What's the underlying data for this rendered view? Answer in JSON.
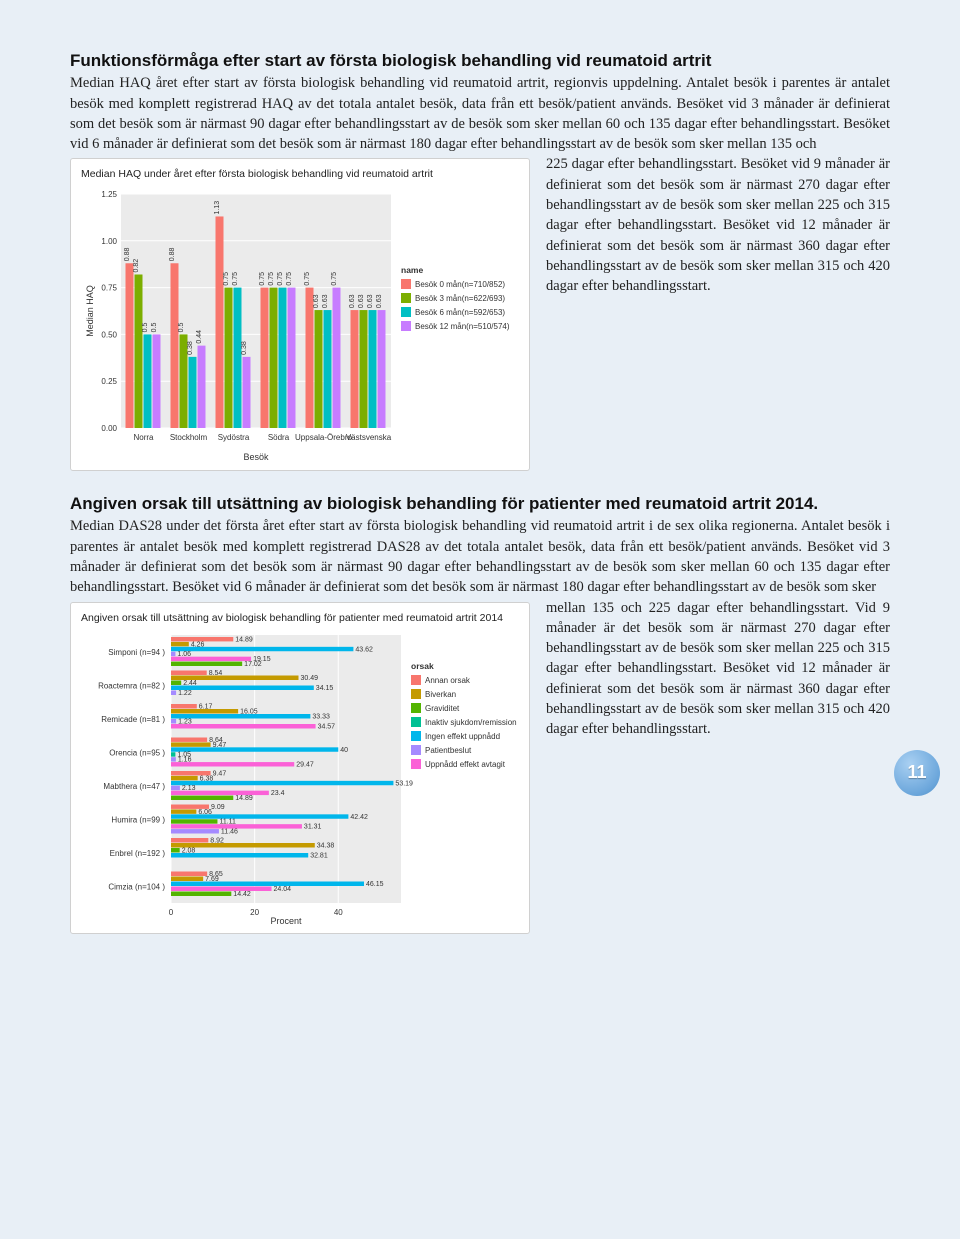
{
  "page_number": "11",
  "section1": {
    "title": "Funktionsförmåga efter start av första biologisk behandling vid reumatoid artrit",
    "para_a": "Median HAQ året efter start av första biologisk behandling vid reumatoid artrit, regionvis uppdelning. Antalet besök i parentes är antalet besök med komplett registrerad HAQ av det totala antalet besök, data från ett besök/patient används. Besöket vid 3 månader är definierat som det besök som är närmast 90 dagar efter behandlingsstart av de besök som sker mellan 60 och 135 dagar efter behandlingsstart. Besöket vid 6 månader är definierat som det besök som är närmast 180 dagar efter behandlingsstart av de besök som sker mellan 135 och ",
    "para_b": "225 dagar efter behandlingsstart. Besöket vid 9 månader är definierat som det besök som är närmast 270 dagar efter behandlingsstart av de besök som sker mellan 225 och 315 dagar efter behandlingsstart. Besöket vid 12 månader är definierat som det besök som är närmast 360 dagar efter behandlingsstart av de besök som sker mellan 315 och 420 dagar efter behandlingsstart."
  },
  "chart1": {
    "title": "Median HAQ under året efter första biologisk behandling vid reumatoid artrit",
    "type": "grouped-bar",
    "ylabel": "Median HAQ",
    "xlabel": "Besök",
    "ylim": [
      0,
      1.25
    ],
    "yticks": [
      0.0,
      0.25,
      0.5,
      0.75,
      1.0,
      1.25
    ],
    "background": "#ebebeb",
    "grid_color": "#ffffff",
    "categories": [
      "Norra",
      "Stockholm",
      "Sydöstra",
      "Södra",
      "Uppsala-Örebro",
      "Västsvenska"
    ],
    "series": [
      {
        "name": "Besök 0 mån(n=710/852)",
        "color": "#f8766d",
        "values": [
          0.88,
          0.88,
          1.13,
          0.75,
          0.75,
          0.63
        ]
      },
      {
        "name": "Besök 3 mån(n=622/693)",
        "color": "#7cae00",
        "values": [
          0.82,
          0.5,
          0.75,
          0.75,
          0.63,
          0.63
        ]
      },
      {
        "name": "Besök 6 mån(n=592/653)",
        "color": "#00bfc4",
        "values": [
          0.5,
          0.38,
          0.75,
          0.75,
          0.63,
          0.63
        ]
      },
      {
        "name": "Besök 12 mån(n=510/574)",
        "color": "#c77cff",
        "values": [
          0.5,
          0.44,
          0.38,
          0.75,
          0.75,
          0.63
        ]
      }
    ],
    "legend_title": "name"
  },
  "section2": {
    "title": "Angiven orsak till utsättning av biologisk behandling för patienter med reumatoid artrit 2014.",
    "para_a": "Median DAS28 under det första året efter start av första biologisk behandling vid reumatoid artrit i de sex olika regionerna. Antalet besök i parentes är antalet besök med komplett registrerad DAS28 av det totala antalet besök, data från ett besök/patient används. Besöket vid 3 månader är definierat som det besök som är närmast 90 dagar efter behandlingsstart av de besök som sker mellan 60 och 135 dagar efter behandlingsstart. Besöket vid 6 månader är definierat som det besök som är närmast 180 dagar efter behandlingsstart av de besök som sker ",
    "para_b": "mellan 135 och 225 dagar efter behandlingsstart. Vid 9 månader är det besök som är närmast 270 dagar efter behandlingsstart av de besök som sker mellan 225 och 315 dagar efter behandlingsstart. Besöket vid 12 månader är definierat som det besök som är närmast 360 dagar efter behandlingsstart av de besök som sker mellan 315 och 420 dagar efter behandlingsstart."
  },
  "chart2": {
    "title": "Angiven orsak till utsättning av biologisk behandling för patienter med reumatoid artrit 2014",
    "type": "stacked-bar-horizontal",
    "xlabel": "Procent",
    "xlim": [
      0,
      55
    ],
    "xticks": [
      0,
      20,
      40
    ],
    "background": "#ebebeb",
    "grid_color": "#ffffff",
    "legend_title": "orsak",
    "orsak_colors": {
      "Annan orsak": "#f8766d",
      "Biverkan": "#c49a00",
      "Graviditet": "#53b400",
      "Inaktiv sjukdom/remission": "#00c094",
      "Ingen effekt uppnådd": "#00b6eb",
      "Patientbeslut": "#a58aff",
      "Uppnådd effekt avtagit": "#fb61d7"
    },
    "drugs": [
      {
        "name": "Simponi (n=94 )",
        "segments": [
          {
            "v": 14.89,
            "c": "#f8766d"
          },
          {
            "v": 4.26,
            "c": "#c49a00"
          },
          {
            "v": 43.62,
            "c": "#00b6eb"
          },
          {
            "v": 1.06,
            "c": "#a58aff"
          },
          {
            "v": 19.15,
            "c": "#fb61d7"
          },
          {
            "v": 17.02,
            "c": "#53b400"
          }
        ]
      },
      {
        "name": "Roactemra (n=82 )",
        "segments": [
          {
            "v": 8.54,
            "c": "#f8766d"
          },
          {
            "v": 30.49,
            "c": "#c49a00"
          },
          {
            "v": 2.44,
            "c": "#53b400"
          },
          {
            "v": 34.15,
            "c": "#00b6eb"
          },
          {
            "v": 1.22,
            "c": "#a58aff"
          }
        ]
      },
      {
        "name": "Remicade (n=81 )",
        "segments": [
          {
            "v": 6.17,
            "c": "#f8766d"
          },
          {
            "v": 16.05,
            "c": "#c49a00"
          },
          {
            "v": 33.33,
            "c": "#00b6eb"
          },
          {
            "v": 1.23,
            "c": "#a58aff"
          },
          {
            "v": 34.57,
            "c": "#fb61d7"
          }
        ]
      },
      {
        "name": "Orencia (n=95 )",
        "segments": [
          {
            "v": 8.64,
            "c": "#f8766d"
          },
          {
            "v": 9.47,
            "c": "#c49a00"
          },
          {
            "v": 40,
            "c": "#00b6eb"
          },
          {
            "v": 1.05,
            "c": "#00c094"
          },
          {
            "v": 1.16,
            "c": "#a58aff"
          },
          {
            "v": 29.47,
            "c": "#fb61d7"
          }
        ]
      },
      {
        "name": "Mabthera (n=47 )",
        "segments": [
          {
            "v": 9.47,
            "c": "#f8766d"
          },
          {
            "v": 6.38,
            "c": "#c49a00"
          },
          {
            "v": 53.19,
            "c": "#00b6eb"
          },
          {
            "v": 2.13,
            "c": "#a58aff"
          },
          {
            "v": 23.4,
            "c": "#fb61d7"
          },
          {
            "v": 14.89,
            "c": "#53b400"
          }
        ]
      },
      {
        "name": "Humira (n=99 )",
        "segments": [
          {
            "v": 9.09,
            "c": "#f8766d"
          },
          {
            "v": 6.06,
            "c": "#c49a00"
          },
          {
            "v": 42.42,
            "c": "#00b6eb"
          },
          {
            "v": 11.11,
            "c": "#53b400"
          },
          {
            "v": 31.31,
            "c": "#fb61d7"
          },
          {
            "v": 11.46,
            "c": "#a58aff"
          }
        ]
      },
      {
        "name": "Enbrel (n=192 )",
        "segments": [
          {
            "v": 8.92,
            "c": "#f8766d"
          },
          {
            "v": 34.38,
            "c": "#c49a00"
          },
          {
            "v": 2.08,
            "c": "#53b400"
          },
          {
            "v": 32.81,
            "c": "#00b6eb"
          }
        ]
      },
      {
        "name": "Cimzia (n=104 )",
        "segments": [
          {
            "v": 8.65,
            "c": "#f8766d"
          },
          {
            "v": 7.69,
            "c": "#c49a00"
          },
          {
            "v": 46.15,
            "c": "#00b6eb"
          },
          {
            "v": 24.04,
            "c": "#fb61d7"
          },
          {
            "v": 14.42,
            "c": "#53b400"
          }
        ]
      }
    ]
  }
}
